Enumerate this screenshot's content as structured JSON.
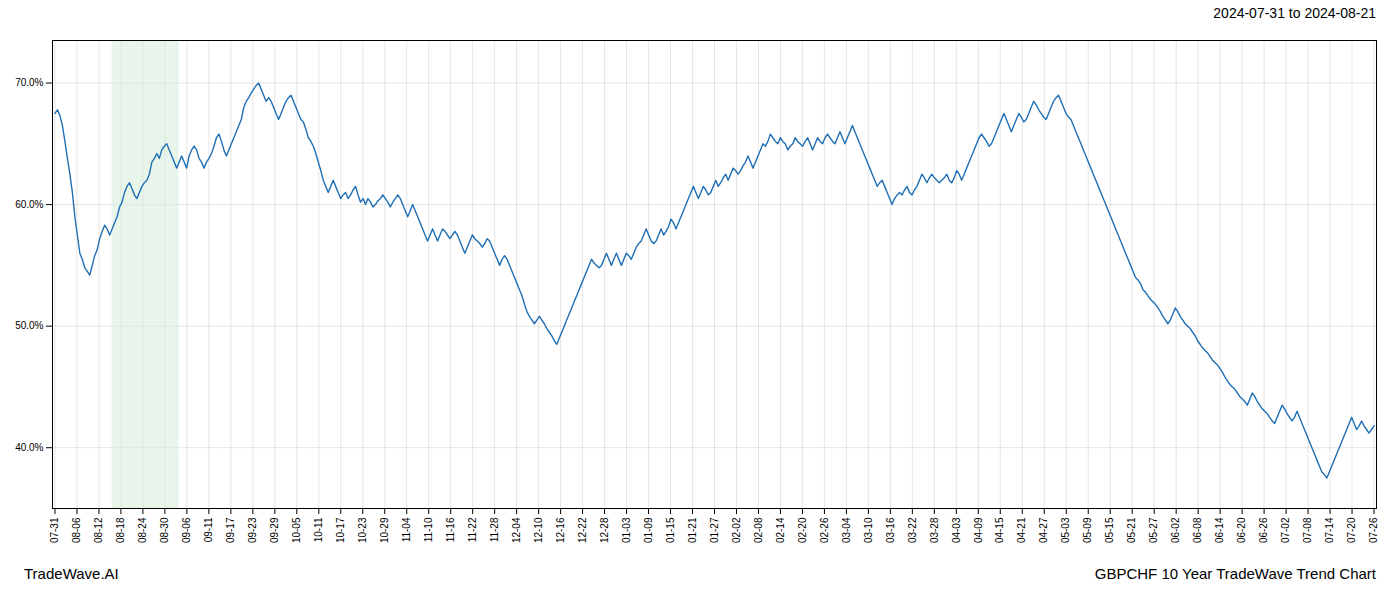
{
  "chart_data": {
    "type": "line",
    "title": "GBPCHF 10 Year TradeWave Trend Chart",
    "subtitle": "2024-07-31 to 2024-08-21",
    "annotations": [
      "TradeWave.AI"
    ],
    "color": "#1f6fb5",
    "grid": true,
    "xlim": [
      -1,
      532
    ],
    "xticks": [
      {
        "value": 0,
        "label": "07-31"
      },
      {
        "value": 8.85,
        "label": "08-06"
      },
      {
        "value": 17.7,
        "label": "08-12"
      },
      {
        "value": 26.55,
        "label": "08-18"
      },
      {
        "value": 35.4,
        "label": "08-24"
      },
      {
        "value": 44.25,
        "label": "08-30"
      },
      {
        "value": 53.1,
        "label": "09-06"
      },
      {
        "value": 61.95,
        "label": "09-11"
      },
      {
        "value": 70.8,
        "label": "09-17"
      },
      {
        "value": 79.65,
        "label": "09-23"
      },
      {
        "value": 88.5,
        "label": "09-29"
      },
      {
        "value": 97.35,
        "label": "10-05"
      },
      {
        "value": 106.2,
        "label": "10-11"
      },
      {
        "value": 115.05,
        "label": "10-17"
      },
      {
        "value": 123.9,
        "label": "10-23"
      },
      {
        "value": 132.75,
        "label": "10-29"
      },
      {
        "value": 141.6,
        "label": "11-04"
      },
      {
        "value": 150.45,
        "label": "11-10"
      },
      {
        "value": 159.3,
        "label": "11-16"
      },
      {
        "value": 168.15,
        "label": "11-22"
      },
      {
        "value": 177,
        "label": "11-28"
      },
      {
        "value": 185.85,
        "label": "12-04"
      },
      {
        "value": 194.7,
        "label": "12-10"
      },
      {
        "value": 203.55,
        "label": "12-16"
      },
      {
        "value": 212.4,
        "label": "12-22"
      },
      {
        "value": 221.25,
        "label": "12-28"
      },
      {
        "value": 230.1,
        "label": "01-03"
      },
      {
        "value": 238.95,
        "label": "01-09"
      },
      {
        "value": 247.8,
        "label": "01-15"
      },
      {
        "value": 256.65,
        "label": "01-21"
      },
      {
        "value": 265.5,
        "label": "01-27"
      },
      {
        "value": 274.35,
        "label": "02-02"
      },
      {
        "value": 283.2,
        "label": "02-08"
      },
      {
        "value": 292.05,
        "label": "02-14"
      },
      {
        "value": 300.9,
        "label": "02-20"
      },
      {
        "value": 309.75,
        "label": "02-26"
      },
      {
        "value": 318.6,
        "label": "03-04"
      },
      {
        "value": 327.45,
        "label": "03-10"
      },
      {
        "value": 336.3,
        "label": "03-16"
      },
      {
        "value": 345.15,
        "label": "03-22"
      },
      {
        "value": 354,
        "label": "03-28"
      },
      {
        "value": 362.85,
        "label": "04-03"
      },
      {
        "value": 371.7,
        "label": "04-09"
      },
      {
        "value": 380.55,
        "label": "04-15"
      },
      {
        "value": 389.4,
        "label": "04-21"
      },
      {
        "value": 398.25,
        "label": "04-27"
      },
      {
        "value": 407.1,
        "label": "05-03"
      },
      {
        "value": 415.95,
        "label": "05-09"
      },
      {
        "value": 424.8,
        "label": "05-15"
      },
      {
        "value": 433.65,
        "label": "05-21"
      },
      {
        "value": 442.5,
        "label": "05-27"
      },
      {
        "value": 451.35,
        "label": "06-02"
      },
      {
        "value": 460.2,
        "label": "06-08"
      },
      {
        "value": 469.05,
        "label": "06-14"
      },
      {
        "value": 477.9,
        "label": "06-20"
      },
      {
        "value": 486.75,
        "label": "06-26"
      },
      {
        "value": 495.6,
        "label": "07-02"
      },
      {
        "value": 504.45,
        "label": "07-08"
      },
      {
        "value": 513.3,
        "label": "07-14"
      },
      {
        "value": 522.15,
        "label": "07-20"
      },
      {
        "value": 531,
        "label": "07-26"
      }
    ],
    "ylim": [
      35.0,
      73.5
    ],
    "yticks": [
      {
        "value": 40.0,
        "label": "40.0%"
      },
      {
        "value": 50.0,
        "label": "50.0%"
      },
      {
        "value": 60.0,
        "label": "60.0%"
      },
      {
        "value": 70.0,
        "label": "70.0%"
      }
    ],
    "shaded_span": {
      "x": [
        23,
        50
      ],
      "color": "#d4edda"
    },
    "values": [
      67.5,
      67.8,
      67.3,
      66.5,
      65.2,
      63.8,
      62.5,
      61.0,
      59.0,
      57.5,
      56.0,
      55.5,
      54.8,
      54.5,
      54.2,
      55.0,
      55.8,
      56.3,
      57.2,
      57.8,
      58.3,
      58.0,
      57.5,
      58.0,
      58.5,
      59.0,
      59.8,
      60.2,
      61.0,
      61.5,
      61.8,
      61.3,
      60.8,
      60.5,
      61.0,
      61.5,
      61.8,
      62.0,
      62.5,
      63.5,
      63.8,
      64.2,
      63.8,
      64.5,
      64.8,
      65.0,
      64.5,
      64.0,
      63.5,
      63.0,
      63.5,
      64.0,
      63.5,
      63.0,
      64.0,
      64.5,
      64.8,
      64.5,
      63.8,
      63.5,
      63.0,
      63.5,
      63.8,
      64.2,
      64.8,
      65.5,
      65.8,
      65.2,
      64.5,
      64.0,
      64.5,
      65.0,
      65.5,
      66.0,
      66.5,
      67.0,
      68.0,
      68.5,
      68.8,
      69.2,
      69.5,
      69.8,
      70.0,
      69.5,
      69.0,
      68.5,
      68.8,
      68.5,
      68.0,
      67.5,
      67.0,
      67.5,
      68.0,
      68.5,
      68.8,
      69.0,
      68.5,
      68.0,
      67.5,
      67.0,
      66.8,
      66.2,
      65.5,
      65.2,
      64.8,
      64.2,
      63.5,
      62.8,
      62.0,
      61.5,
      61.0,
      61.5,
      62.0,
      61.5,
      61.0,
      60.5,
      60.8,
      61.0,
      60.5,
      60.8,
      61.2,
      61.5,
      60.8,
      60.2,
      60.5,
      60.0,
      60.5,
      60.2,
      59.8,
      60.0,
      60.3,
      60.5,
      60.8,
      60.5,
      60.2,
      59.8,
      60.2,
      60.5,
      60.8,
      60.5,
      60.0,
      59.5,
      59.0,
      59.5,
      60.0,
      59.5,
      59.0,
      58.5,
      58.0,
      57.5,
      57.0,
      57.5,
      58.0,
      57.5,
      57.0,
      57.5,
      58.0,
      57.8,
      57.5,
      57.2,
      57.5,
      57.8,
      57.5,
      57.0,
      56.5,
      56.0,
      56.5,
      57.0,
      57.5,
      57.2,
      57.0,
      56.8,
      56.5,
      56.8,
      57.2,
      57.0,
      56.5,
      56.0,
      55.5,
      55.0,
      55.5,
      55.8,
      55.5,
      55.0,
      54.5,
      54.0,
      53.5,
      53.0,
      52.5,
      51.8,
      51.2,
      50.8,
      50.5,
      50.2,
      50.5,
      50.8,
      50.5,
      50.2,
      49.8,
      49.5,
      49.2,
      48.8,
      48.5,
      49.0,
      49.5,
      50.0,
      50.5,
      51.0,
      51.5,
      52.0,
      52.5,
      53.0,
      53.5,
      54.0,
      54.5,
      55.0,
      55.5,
      55.2,
      55.0,
      54.8,
      55.0,
      55.5,
      56.0,
      55.5,
      55.0,
      55.5,
      56.0,
      55.5,
      55.0,
      55.5,
      56.0,
      55.8,
      55.5,
      56.0,
      56.5,
      56.8,
      57.0,
      57.5,
      58.0,
      57.5,
      57.0,
      56.8,
      57.0,
      57.5,
      58.0,
      57.5,
      57.8,
      58.2,
      58.8,
      58.5,
      58.0,
      58.5,
      59.0,
      59.5,
      60.0,
      60.5,
      61.0,
      61.5,
      61.0,
      60.5,
      61.0,
      61.5,
      61.2,
      60.8,
      61.0,
      61.5,
      62.0,
      61.5,
      61.8,
      62.2,
      62.5,
      62.0,
      62.5,
      63.0,
      62.8,
      62.5,
      62.8,
      63.2,
      63.5,
      64.0,
      63.5,
      63.0,
      63.5,
      64.0,
      64.5,
      65.0,
      64.8,
      65.2,
      65.8,
      65.5,
      65.2,
      65.0,
      65.5,
      65.2,
      65.0,
      64.5,
      64.8,
      65.0,
      65.5,
      65.2,
      65.0,
      64.8,
      65.2,
      65.5,
      65.0,
      64.5,
      65.0,
      65.5,
      65.2,
      65.0,
      65.5,
      65.8,
      65.5,
      65.2,
      65.0,
      65.5,
      66.0,
      65.5,
      65.0,
      65.5,
      66.0,
      66.5,
      66.0,
      65.5,
      65.0,
      64.5,
      64.0,
      63.5,
      63.0,
      62.5,
      62.0,
      61.5,
      61.8,
      62.0,
      61.5,
      61.0,
      60.5,
      60.0,
      60.5,
      60.8,
      61.0,
      60.8,
      61.2,
      61.5,
      61.0,
      60.8,
      61.2,
      61.5,
      62.0,
      62.5,
      62.2,
      61.8,
      62.2,
      62.5,
      62.2,
      62.0,
      61.8,
      62.0,
      62.2,
      62.5,
      62.0,
      61.8,
      62.2,
      62.8,
      62.5,
      62.0,
      62.5,
      63.0,
      63.5,
      64.0,
      64.5,
      65.0,
      65.5,
      65.8,
      65.5,
      65.2,
      64.8,
      65.0,
      65.5,
      66.0,
      66.5,
      67.0,
      67.5,
      67.0,
      66.5,
      66.0,
      66.5,
      67.0,
      67.5,
      67.2,
      66.8,
      67.0,
      67.5,
      68.0,
      68.5,
      68.2,
      67.8,
      67.5,
      67.2,
      67.0,
      67.5,
      68.0,
      68.5,
      68.8,
      69.0,
      68.5,
      68.0,
      67.5,
      67.2,
      67.0,
      66.5,
      66.0,
      65.5,
      65.0,
      64.5,
      64.0,
      63.5,
      63.0,
      62.5,
      62.0,
      61.5,
      61.0,
      60.5,
      60.0,
      59.5,
      59.0,
      58.5,
      58.0,
      57.5,
      57.0,
      56.5,
      56.0,
      55.5,
      55.0,
      54.5,
      54.0,
      53.8,
      53.5,
      53.0,
      52.8,
      52.5,
      52.2,
      52.0,
      51.8,
      51.5,
      51.2,
      50.8,
      50.5,
      50.2,
      50.5,
      51.0,
      51.5,
      51.2,
      50.8,
      50.5,
      50.2,
      50.0,
      49.8,
      49.5,
      49.2,
      48.8,
      48.5,
      48.2,
      48.0,
      47.8,
      47.5,
      47.2,
      47.0,
      46.8,
      46.5,
      46.2,
      45.8,
      45.5,
      45.2,
      45.0,
      44.8,
      44.5,
      44.2,
      44.0,
      43.8,
      43.5,
      44.0,
      44.5,
      44.2,
      43.8,
      43.5,
      43.2,
      43.0,
      42.8,
      42.5,
      42.2,
      42.0,
      42.5,
      43.0,
      43.5,
      43.2,
      42.8,
      42.5,
      42.2,
      42.5,
      43.0,
      42.5,
      42.0,
      41.5,
      41.0,
      40.5,
      40.0,
      39.5,
      39.0,
      38.5,
      38.0,
      37.8,
      37.5,
      38.0,
      38.5,
      39.0,
      39.5,
      40.0,
      40.5,
      41.0,
      41.5,
      42.0,
      42.5,
      42.0,
      41.5,
      41.8,
      42.2,
      41.8,
      41.5,
      41.2,
      41.5,
      41.8
    ]
  }
}
